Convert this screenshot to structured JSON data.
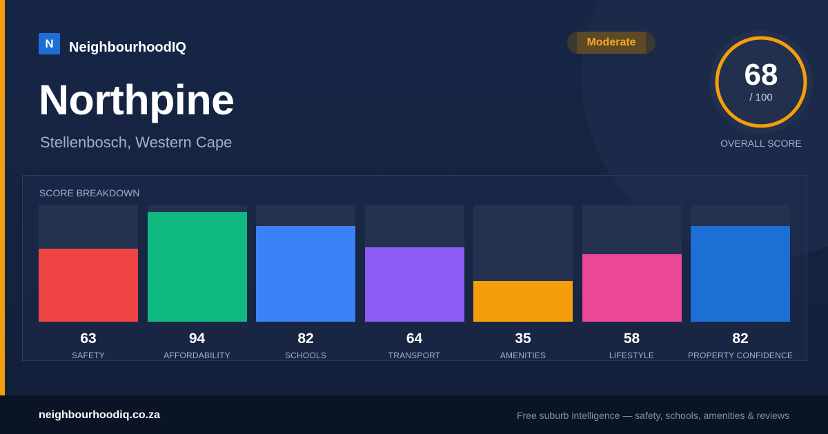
{
  "brand": {
    "logo_letter": "N",
    "name": "NeighbourhoodIQ"
  },
  "suburb": {
    "name": "Northpine",
    "region": "Stellenbosch, Western Cape"
  },
  "rating_badge": "Moderate",
  "overall": {
    "score": "68",
    "max": "/ 100",
    "label": "OVERALL SCORE",
    "progress": 0.68
  },
  "breakdown": {
    "title": "SCORE BREAKDOWN",
    "items": [
      {
        "value": 63,
        "label": "SAFETY",
        "color": "#ef4444"
      },
      {
        "value": 94,
        "label": "AFFORDABILITY",
        "color": "#10b981"
      },
      {
        "value": 82,
        "label": "SCHOOLS",
        "color": "#3b82f6"
      },
      {
        "value": 64,
        "label": "TRANSPORT",
        "color": "#8b5cf6"
      },
      {
        "value": 35,
        "label": "AMENITIES",
        "color": "#f59e0b"
      },
      {
        "value": 58,
        "label": "LIFESTYLE",
        "color": "#ec4899"
      },
      {
        "value": 82,
        "label": "PROPERTY CONFIDENCE",
        "color": "#1d6fd6"
      }
    ]
  },
  "footer": {
    "url": "neighbourhoodiq.co.za",
    "tagline": "Free suburb intelligence — safety, schools, amenities & reviews"
  },
  "colors": {
    "accent": "#f59e0b",
    "background": "#14213d",
    "brand_blue": "#1d6fd6"
  }
}
